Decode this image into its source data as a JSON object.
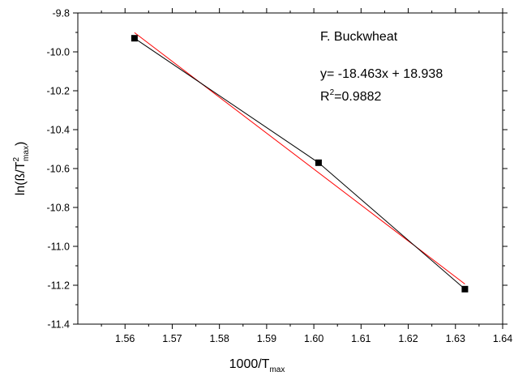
{
  "chart_data": {
    "type": "scatter",
    "title": "",
    "xlabel": {
      "main": "1000/T",
      "sub": "max"
    },
    "ylabel": {
      "prefix": "ln(ß/T",
      "sup": "2",
      "sub": "max",
      "suffix": ")"
    },
    "xlim": [
      1.55,
      1.64
    ],
    "ylim": [
      -11.4,
      -9.8
    ],
    "x_ticks": [
      1.56,
      1.57,
      1.58,
      1.59,
      1.6,
      1.61,
      1.62,
      1.63,
      1.64
    ],
    "x_tick_labels": [
      "1.56",
      "1.57",
      "1.58",
      "1.59",
      "1.60",
      "1.61",
      "1.62",
      "1.63",
      "1.64"
    ],
    "y_ticks": [
      -9.8,
      -10.0,
      -10.2,
      -10.4,
      -10.6,
      -10.8,
      -11.0,
      -11.2,
      -11.4
    ],
    "y_tick_labels": [
      "-9.8",
      "-10.0",
      "-10.2",
      "-10.4",
      "-10.6",
      "-10.8",
      "-11.0",
      "-11.2",
      "-11.4"
    ],
    "grid": false,
    "series": [
      {
        "x": [
          1.562,
          1.601,
          1.632
        ],
        "y": [
          -9.93,
          -10.57,
          -11.22
        ],
        "marker": "square",
        "color": "#000000",
        "connected": true
      }
    ],
    "fit_line": {
      "slope": -18.463,
      "intercept": 18.938,
      "x_range": [
        1.562,
        1.632
      ],
      "color": "#ff0000"
    },
    "annotations": {
      "sample": "F. Buckwheat",
      "equation": "y= -18.463x + 18.938",
      "r2": {
        "prefix": "R",
        "sup": "2",
        "value": "=0.9882"
      }
    }
  }
}
